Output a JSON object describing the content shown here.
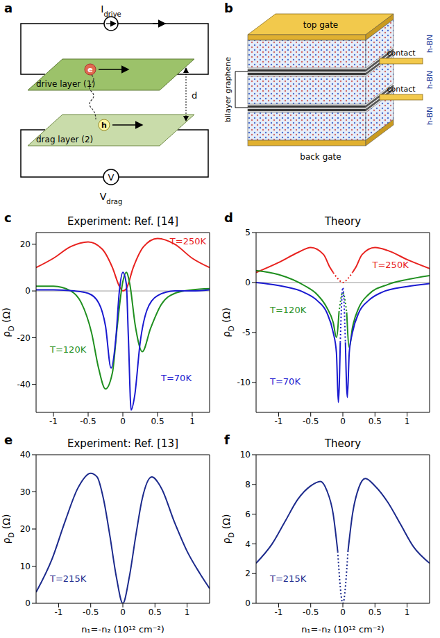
{
  "panel_a": {
    "label": "a",
    "current_symbol": "I",
    "current_subscript": "drive",
    "drive_layer": "drive layer (1)",
    "drag_layer": "drag layer (2)",
    "electron": "e",
    "hole": "h",
    "distance": "d",
    "voltmeter": "V",
    "voltage_symbol": "V",
    "voltage_subscript": "drag"
  },
  "panel_b": {
    "label": "b",
    "top_gate": "top gate",
    "back_gate": "back gate",
    "contacts": [
      "contact",
      "contact"
    ],
    "hbn": [
      "h-BN",
      "h-BN",
      "h-BN"
    ],
    "bilayer": "bilayer graphene"
  },
  "chart_data": [
    {
      "type": "line",
      "panel": "c",
      "title": "Experiment: Ref. [14]",
      "y_label": {
        "text": "ρ",
        "sub": "D",
        "after": " (Ω)"
      },
      "xlim": [
        -1.25,
        1.25
      ],
      "xticks": [
        -1,
        -0.5,
        0,
        0.5,
        1
      ],
      "ylim": [
        -52,
        25
      ],
      "yticks": [
        -40,
        -20,
        0,
        20
      ],
      "hline": 0,
      "series": [
        {
          "name": "T=250K",
          "color": "#e8221f",
          "x": [
            -1.25,
            -1,
            -0.75,
            -0.5,
            -0.3,
            -0.15,
            -0.05,
            0,
            0.05,
            0.15,
            0.3,
            0.5,
            0.75,
            1,
            1.25
          ],
          "values": [
            10,
            14,
            19,
            21,
            18,
            10,
            2,
            0,
            1,
            10,
            19,
            22.5,
            20,
            14,
            10
          ]
        },
        {
          "name": "T=120K",
          "color": "#1f8f1f",
          "x": [
            -1.25,
            -1,
            -0.75,
            -0.6,
            -0.45,
            -0.35,
            -0.25,
            -0.15,
            -0.08,
            0,
            0.05,
            0.1,
            0.18,
            0.28,
            0.4,
            0.55,
            0.75,
            1,
            1.25
          ],
          "values": [
            2,
            2,
            0,
            -5,
            -18,
            -33,
            -42,
            -35,
            -15,
            4,
            8,
            3,
            -15,
            -26,
            -16,
            -6,
            -1,
            0.5,
            1
          ]
        },
        {
          "name": "T=70K",
          "color": "#1a1ad0",
          "x": [
            -1.25,
            -1,
            -0.7,
            -0.5,
            -0.35,
            -0.25,
            -0.17,
            -0.1,
            -0.05,
            0,
            0.05,
            0.08,
            0.12,
            0.17,
            0.25,
            0.35,
            0.5,
            0.75,
            1,
            1.25
          ],
          "values": [
            0.5,
            0.5,
            0,
            -1,
            -5,
            -15,
            -33,
            -20,
            0,
            8,
            3,
            -20,
            -51,
            -45,
            -22,
            -8,
            -2,
            0,
            0,
            0.5
          ]
        }
      ]
    },
    {
      "type": "line",
      "panel": "d",
      "title": "Theory",
      "y_label": {
        "text": "ρ",
        "sub": "D",
        "after": " (Ω)"
      },
      "xlim": [
        -1.35,
        1.35
      ],
      "xticks": [
        -1,
        -0.5,
        0,
        0.5,
        1
      ],
      "ylim": [
        -13,
        5
      ],
      "yticks": [
        -10,
        -5,
        0,
        5
      ],
      "hline": 0,
      "series": [
        {
          "name": "T=250K",
          "color": "#e8221f",
          "x": [
            -1.35,
            -1,
            -0.7,
            -0.5,
            -0.3,
            -0.2,
            -0.15,
            0,
            0.15,
            0.2,
            0.3,
            0.5,
            0.7,
            1,
            1.35
          ],
          "values": [
            1,
            2,
            3,
            3.5,
            2.8,
            1.5,
            1,
            null,
            1,
            1.5,
            2.8,
            3.5,
            3.2,
            2.3,
            1.4
          ]
        },
        {
          "color": "#e8221f",
          "line_style": "dotted",
          "x": [
            -0.15,
            -0.08,
            0,
            0.08,
            0.15
          ],
          "values": [
            1,
            0.4,
            0,
            0.4,
            1
          ]
        },
        {
          "name": "T=120K",
          "color": "#1f8f1f",
          "x": [
            -1.35,
            -1,
            -0.6,
            -0.4,
            -0.25,
            -0.15,
            -0.1,
            -0.06,
            0,
            0.06,
            0.1,
            0.15,
            0.25,
            0.4,
            0.7,
            1,
            1.35
          ],
          "values": [
            1.2,
            0.8,
            -0.3,
            -1.2,
            -2.5,
            -4,
            -5.5,
            -3,
            null,
            -3,
            -6.5,
            -4.5,
            -2.5,
            -1.2,
            -0.2,
            0.3,
            0.7
          ]
        },
        {
          "color": "#1f8f1f",
          "line_style": "dotted",
          "x": [
            -0.06,
            0,
            0.06
          ],
          "values": [
            -3,
            -1,
            -3
          ]
        },
        {
          "name": "T=70K",
          "color": "#1a1ad0",
          "x": [
            -1.35,
            -1,
            -0.6,
            -0.4,
            -0.25,
            -0.15,
            -0.1,
            -0.07,
            -0.04,
            0,
            0.04,
            0.07,
            0.1,
            0.15,
            0.25,
            0.4,
            0.6,
            1,
            1.35
          ],
          "values": [
            0,
            -0.3,
            -1,
            -1.8,
            -3,
            -5,
            -7,
            -12,
            -6,
            null,
            -6,
            -11.5,
            -7,
            -5,
            -3,
            -1.8,
            -1,
            -0.4,
            -0.1
          ]
        },
        {
          "color": "#1a1ad0",
          "line_style": "dotted",
          "x": [
            -0.04,
            0,
            0.04
          ],
          "values": [
            -6,
            -0.5,
            -6
          ]
        }
      ]
    },
    {
      "type": "line",
      "panel": "e",
      "title": "Experiment: Ref. [13]",
      "y_label": {
        "text": "ρ",
        "sub": "D",
        "after": " (Ω)"
      },
      "x_label": "n₁=-n₂ (10¹² cm⁻²)",
      "xlim": [
        -1.35,
        1.35
      ],
      "xticks": [
        -1,
        -0.5,
        0,
        0.5,
        1
      ],
      "ylim": [
        0,
        40
      ],
      "yticks": [
        0,
        10,
        20,
        30,
        40
      ],
      "series": [
        {
          "name": "T=215K",
          "color": "#1c2a8c",
          "x": [
            -1.35,
            -1.1,
            -0.9,
            -0.7,
            -0.5,
            -0.4,
            -0.3,
            -0.2,
            -0.1,
            0,
            0.1,
            0.2,
            0.3,
            0.45,
            0.6,
            0.8,
            1,
            1.2,
            1.35
          ],
          "values": [
            3,
            12,
            22,
            31,
            35,
            34,
            28,
            18,
            7,
            0,
            7,
            18,
            28,
            34,
            31,
            22,
            14,
            8,
            4
          ]
        }
      ]
    },
    {
      "type": "line",
      "panel": "f",
      "title": "Theory",
      "y_label": {
        "text": "ρ",
        "sub": "D",
        "after": " (Ω)"
      },
      "x_label": "n₁=-n₂ (10¹² cm⁻²)",
      "xlim": [
        -1.35,
        1.35
      ],
      "xticks": [
        -1,
        -0.5,
        0,
        0.5,
        1
      ],
      "ylim": [
        0,
        10
      ],
      "yticks": [
        0,
        2,
        4,
        6,
        8,
        10
      ],
      "series": [
        {
          "name": "T=215K",
          "color": "#1c2a8c",
          "x": [
            -1.35,
            -1.1,
            -0.9,
            -0.7,
            -0.5,
            -0.35,
            -0.25,
            -0.15,
            -0.08,
            0,
            0.08,
            0.15,
            0.25,
            0.35,
            0.5,
            0.7,
            0.9,
            1.1,
            1.35
          ],
          "values": [
            2.7,
            4,
            5.5,
            7,
            7.9,
            8.2,
            7.6,
            6,
            3.5,
            null,
            3.5,
            6,
            7.8,
            8.4,
            7.9,
            6.8,
            5.3,
            3.8,
            2.7
          ]
        },
        {
          "color": "#1c2a8c",
          "line_style": "dotted",
          "x": [
            -0.08,
            0,
            0.08
          ],
          "values": [
            3.5,
            0,
            3.5
          ]
        }
      ]
    }
  ]
}
